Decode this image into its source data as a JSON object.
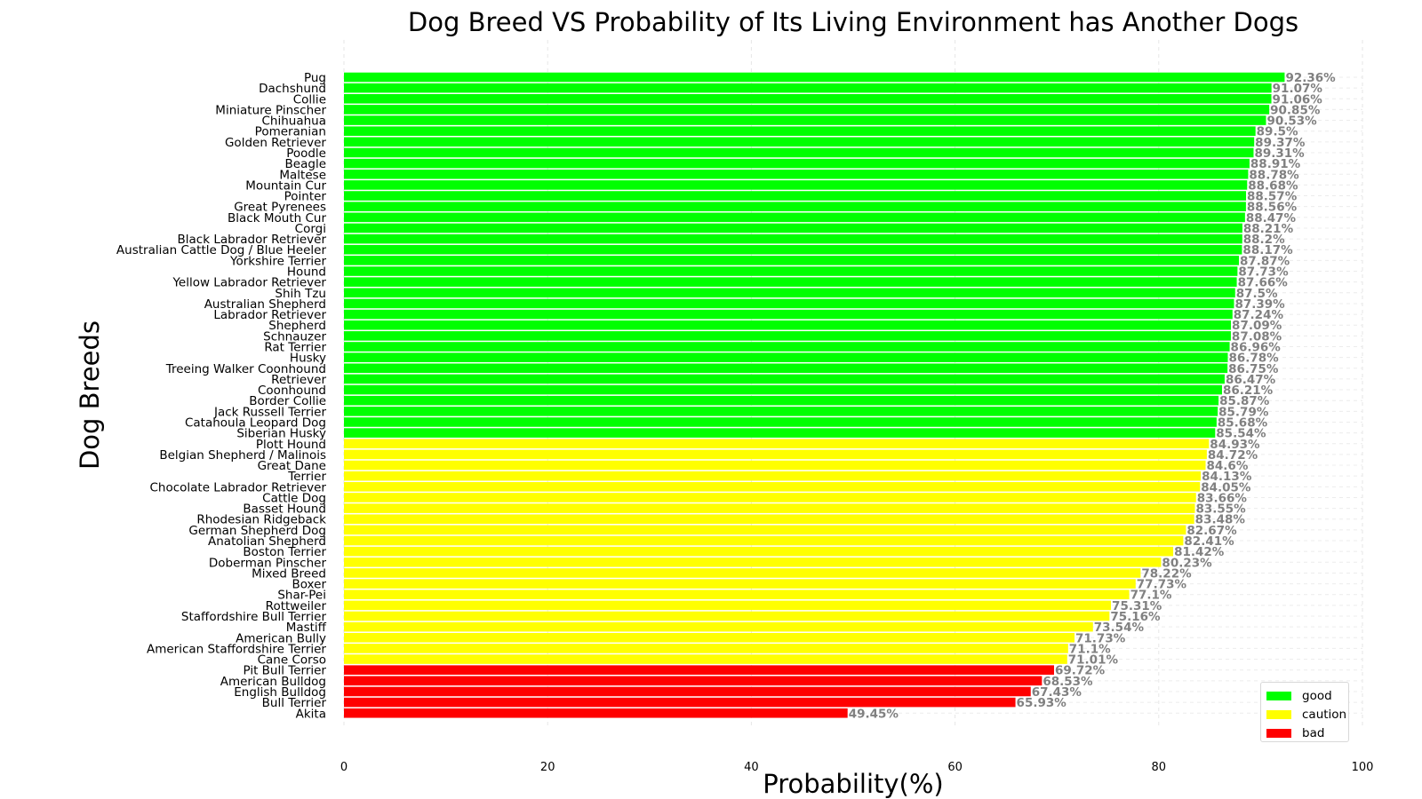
{
  "chart_data": {
    "type": "bar",
    "orientation": "horizontal",
    "title": "Dog Breed VS Probability of Its Living Environment has Another Dogs",
    "xlabel": "Probability(%)",
    "ylabel": "Dog Breeds",
    "xlim": [
      0,
      100
    ],
    "xticks": [
      "0",
      "20",
      "40",
      "60",
      "80",
      "100"
    ],
    "grid": true,
    "legend_position": "bottom-right",
    "legend": [
      {
        "name": "good",
        "color": "#00ff00"
      },
      {
        "name": "caution",
        "color": "#ffff00"
      },
      {
        "name": "bad",
        "color": "#ff0000"
      }
    ],
    "bars": [
      {
        "breed": "Pug",
        "value": 92.36,
        "label": "92.36%",
        "group": "good"
      },
      {
        "breed": "Dachshund",
        "value": 91.07,
        "label": "91.07%",
        "group": "good"
      },
      {
        "breed": "Collie",
        "value": 91.06,
        "label": "91.06%",
        "group": "good"
      },
      {
        "breed": "Miniature Pinscher",
        "value": 90.85,
        "label": "90.85%",
        "group": "good"
      },
      {
        "breed": "Chihuahua",
        "value": 90.53,
        "label": "90.53%",
        "group": "good"
      },
      {
        "breed": "Pomeranian",
        "value": 89.5,
        "label": "89.5%",
        "group": "good"
      },
      {
        "breed": "Golden Retriever",
        "value": 89.37,
        "label": "89.37%",
        "group": "good"
      },
      {
        "breed": "Poodle",
        "value": 89.31,
        "label": "89.31%",
        "group": "good"
      },
      {
        "breed": "Beagle",
        "value": 88.91,
        "label": "88.91%",
        "group": "good"
      },
      {
        "breed": "Maltese",
        "value": 88.78,
        "label": "88.78%",
        "group": "good"
      },
      {
        "breed": "Mountain Cur",
        "value": 88.68,
        "label": "88.68%",
        "group": "good"
      },
      {
        "breed": "Pointer",
        "value": 88.57,
        "label": "88.57%",
        "group": "good"
      },
      {
        "breed": "Great Pyrenees",
        "value": 88.56,
        "label": "88.56%",
        "group": "good"
      },
      {
        "breed": "Black Mouth Cur",
        "value": 88.47,
        "label": "88.47%",
        "group": "good"
      },
      {
        "breed": "Corgi",
        "value": 88.21,
        "label": "88.21%",
        "group": "good"
      },
      {
        "breed": "Black Labrador Retriever",
        "value": 88.2,
        "label": "88.2%",
        "group": "good"
      },
      {
        "breed": "Australian Cattle Dog / Blue Heeler",
        "value": 88.17,
        "label": "88.17%",
        "group": "good"
      },
      {
        "breed": "Yorkshire Terrier",
        "value": 87.87,
        "label": "87.87%",
        "group": "good"
      },
      {
        "breed": "Hound",
        "value": 87.73,
        "label": "87.73%",
        "group": "good"
      },
      {
        "breed": "Yellow Labrador Retriever",
        "value": 87.66,
        "label": "87.66%",
        "group": "good"
      },
      {
        "breed": "Shih Tzu",
        "value": 87.5,
        "label": "87.5%",
        "group": "good"
      },
      {
        "breed": "Australian Shepherd",
        "value": 87.39,
        "label": "87.39%",
        "group": "good"
      },
      {
        "breed": "Labrador Retriever",
        "value": 87.24,
        "label": "87.24%",
        "group": "good"
      },
      {
        "breed": "Shepherd",
        "value": 87.09,
        "label": "87.09%",
        "group": "good"
      },
      {
        "breed": "Schnauzer",
        "value": 87.08,
        "label": "87.08%",
        "group": "good"
      },
      {
        "breed": "Rat Terrier",
        "value": 86.96,
        "label": "86.96%",
        "group": "good"
      },
      {
        "breed": "Husky",
        "value": 86.78,
        "label": "86.78%",
        "group": "good"
      },
      {
        "breed": "Treeing Walker Coonhound",
        "value": 86.75,
        "label": "86.75%",
        "group": "good"
      },
      {
        "breed": "Retriever",
        "value": 86.47,
        "label": "86.47%",
        "group": "good"
      },
      {
        "breed": "Coonhound",
        "value": 86.21,
        "label": "86.21%",
        "group": "good"
      },
      {
        "breed": "Border Collie",
        "value": 85.87,
        "label": "85.87%",
        "group": "good"
      },
      {
        "breed": "Jack Russell Terrier",
        "value": 85.79,
        "label": "85.79%",
        "group": "good"
      },
      {
        "breed": "Catahoula Leopard Dog",
        "value": 85.68,
        "label": "85.68%",
        "group": "good"
      },
      {
        "breed": "Siberian Husky",
        "value": 85.54,
        "label": "85.54%",
        "group": "good"
      },
      {
        "breed": "Plott Hound",
        "value": 84.93,
        "label": "84.93%",
        "group": "caution"
      },
      {
        "breed": "Belgian Shepherd / Malinois",
        "value": 84.72,
        "label": "84.72%",
        "group": "caution"
      },
      {
        "breed": "Great Dane",
        "value": 84.6,
        "label": "84.6%",
        "group": "caution"
      },
      {
        "breed": "Terrier",
        "value": 84.13,
        "label": "84.13%",
        "group": "caution"
      },
      {
        "breed": "Chocolate Labrador Retriever",
        "value": 84.05,
        "label": "84.05%",
        "group": "caution"
      },
      {
        "breed": "Cattle Dog",
        "value": 83.66,
        "label": "83.66%",
        "group": "caution"
      },
      {
        "breed": "Basset Hound",
        "value": 83.55,
        "label": "83.55%",
        "group": "caution"
      },
      {
        "breed": "Rhodesian Ridgeback",
        "value": 83.48,
        "label": "83.48%",
        "group": "caution"
      },
      {
        "breed": "German Shepherd Dog",
        "value": 82.67,
        "label": "82.67%",
        "group": "caution"
      },
      {
        "breed": "Anatolian Shepherd",
        "value": 82.41,
        "label": "82.41%",
        "group": "caution"
      },
      {
        "breed": "Boston Terrier",
        "value": 81.42,
        "label": "81.42%",
        "group": "caution"
      },
      {
        "breed": "Doberman Pinscher",
        "value": 80.23,
        "label": "80.23%",
        "group": "caution"
      },
      {
        "breed": "Mixed Breed",
        "value": 78.22,
        "label": "78.22%",
        "group": "caution"
      },
      {
        "breed": "Boxer",
        "value": 77.73,
        "label": "77.73%",
        "group": "caution"
      },
      {
        "breed": "Shar-Pei",
        "value": 77.1,
        "label": "77.1%",
        "group": "caution"
      },
      {
        "breed": "Rottweiler",
        "value": 75.31,
        "label": "75.31%",
        "group": "caution"
      },
      {
        "breed": "Staffordshire Bull Terrier",
        "value": 75.16,
        "label": "75.16%",
        "group": "caution"
      },
      {
        "breed": "Mastiff",
        "value": 73.54,
        "label": "73.54%",
        "group": "caution"
      },
      {
        "breed": "American Bully",
        "value": 71.73,
        "label": "71.73%",
        "group": "caution"
      },
      {
        "breed": "American Staffordshire Terrier",
        "value": 71.1,
        "label": "71.1%",
        "group": "caution"
      },
      {
        "breed": "Cane Corso",
        "value": 71.01,
        "label": "71.01%",
        "group": "caution"
      },
      {
        "breed": "Pit Bull Terrier",
        "value": 69.72,
        "label": "69.72%",
        "group": "bad"
      },
      {
        "breed": "American Bulldog",
        "value": 68.53,
        "label": "68.53%",
        "group": "bad"
      },
      {
        "breed": "English Bulldog",
        "value": 67.43,
        "label": "67.43%",
        "group": "bad"
      },
      {
        "breed": "Bull Terrier",
        "value": 65.93,
        "label": "65.93%",
        "group": "bad"
      },
      {
        "breed": "Akita",
        "value": 49.45,
        "label": "49.45%",
        "group": "bad"
      }
    ]
  }
}
